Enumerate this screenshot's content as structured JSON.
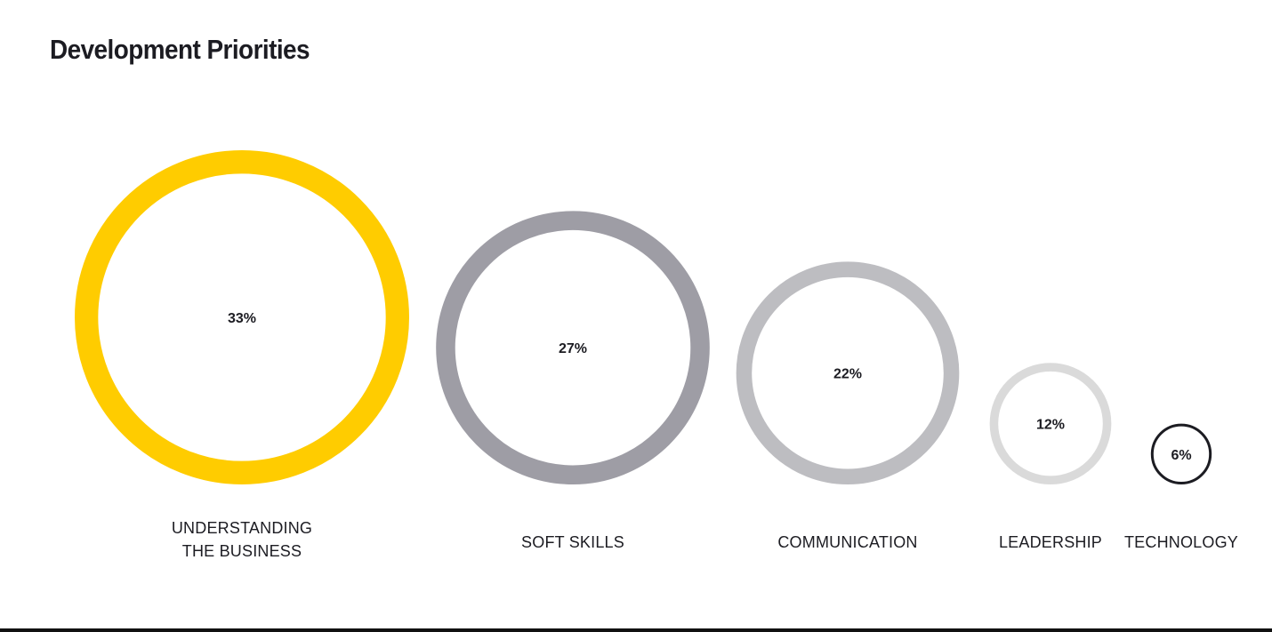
{
  "title": "Development Priorities",
  "chart_data": {
    "type": "bubble",
    "title": "Development Priorities",
    "categories": [
      [
        "UNDERSTANDING",
        "THE BUSINESS"
      ],
      [
        "SOFT SKILLS"
      ],
      [
        "COMMUNICATION"
      ],
      [
        "LEADERSHIP"
      ],
      [
        "TECHNOLOGY"
      ]
    ],
    "values": [
      33,
      27,
      22,
      12,
      6
    ],
    "value_labels": [
      "33%",
      "27%",
      "22%",
      "12%",
      "6%"
    ],
    "colors": [
      "#FFCC00",
      "#9E9DA5",
      "#BDBDC1",
      "#DADADA",
      "#1C1C22"
    ],
    "grid": false,
    "legend": "none"
  }
}
